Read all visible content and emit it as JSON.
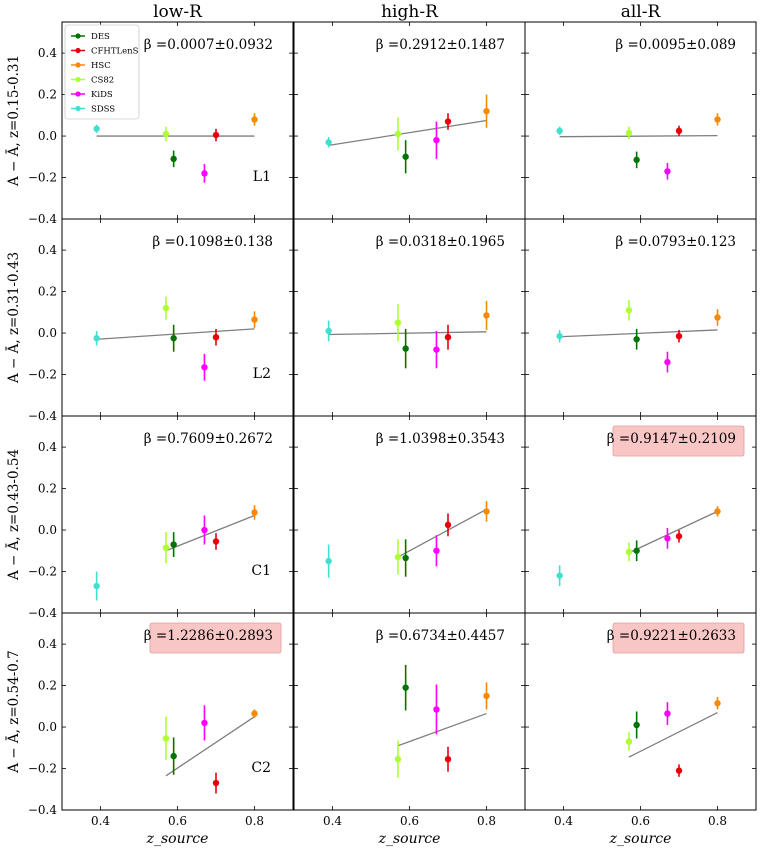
{
  "chart_data": {
    "type": "scatter",
    "layout": "4x3 grid of panels with error bars and linear fit lines",
    "columns": [
      "low-R",
      "high-R",
      "all-R"
    ],
    "rows": [
      {
        "label": "A − Ā, z=0.15-0.31",
        "tag": "L1"
      },
      {
        "label": "A − Ā, z=0.31-0.43",
        "tag": "L2"
      },
      {
        "label": "A − Ā, z=0.43-0.54",
        "tag": "C1"
      },
      {
        "label": "A − Ā, z=0.54-0.7",
        "tag": "C2"
      }
    ],
    "xlabel": "z_source",
    "xlim": [
      0.3,
      0.9
    ],
    "ylim": [
      -0.4,
      0.55
    ],
    "xticks": [
      0.4,
      0.6,
      0.8
    ],
    "xtick_labels": [
      "0.4",
      "0.6",
      "0.8"
    ],
    "yticks": [
      -0.4,
      -0.2,
      0.0,
      0.2,
      0.4
    ],
    "ytick_labels": [
      "−0.4",
      "−0.2",
      "0.0",
      "0.2",
      "0.4"
    ],
    "series": [
      {
        "name": "DES",
        "color": "#007400"
      },
      {
        "name": "CFHTLenS",
        "color": "#e8000b"
      },
      {
        "name": "HSC",
        "color": "#f58a0a"
      },
      {
        "name": "CS82",
        "color": "#adff2f"
      },
      {
        "name": "KiDS",
        "color": "#ff00ff"
      },
      {
        "name": "SDSS",
        "color": "#40e0d0"
      }
    ],
    "x_positions": {
      "SDSS": 0.39,
      "CS82": 0.57,
      "DES": 0.59,
      "KiDS": 0.67,
      "CFHTLenS": 0.7,
      "HSC": 0.8
    },
    "panels": [
      {
        "row": 0,
        "col": 0,
        "beta": "β =0.0007±0.0932",
        "highlight": false,
        "points": {
          "SDSS": [
            0.035,
            0.02
          ],
          "CS82": [
            0.01,
            0.035
          ],
          "DES": [
            -0.11,
            0.04
          ],
          "KiDS": [
            -0.18,
            0.045
          ],
          "CFHTLenS": [
            0.005,
            0.03
          ],
          "HSC": [
            0.08,
            0.03
          ]
        },
        "fit": [
          [
            0.39,
            0.0
          ],
          [
            0.8,
            0.0
          ]
        ]
      },
      {
        "row": 0,
        "col": 1,
        "beta": "β =0.2912±0.1487",
        "highlight": false,
        "points": {
          "SDSS": [
            -0.03,
            0.025
          ],
          "CS82": [
            0.01,
            0.08
          ],
          "DES": [
            -0.1,
            0.08
          ],
          "KiDS": [
            -0.02,
            0.09
          ],
          "CFHTLenS": [
            0.07,
            0.04
          ],
          "HSC": [
            0.12,
            0.08
          ]
        },
        "fit": [
          [
            0.39,
            -0.045
          ],
          [
            0.8,
            0.075
          ]
        ]
      },
      {
        "row": 0,
        "col": 2,
        "beta": "β =0.0095±0.089",
        "highlight": false,
        "points": {
          "SDSS": [
            0.025,
            0.02
          ],
          "CS82": [
            0.015,
            0.03
          ],
          "DES": [
            -0.115,
            0.04
          ],
          "KiDS": [
            -0.17,
            0.04
          ],
          "CFHTLenS": [
            0.025,
            0.025
          ],
          "HSC": [
            0.08,
            0.03
          ]
        },
        "fit": [
          [
            0.39,
            -0.003
          ],
          [
            0.8,
            0.002
          ]
        ]
      },
      {
        "row": 1,
        "col": 0,
        "beta": "β =0.1098±0.138",
        "highlight": false,
        "points": {
          "SDSS": [
            -0.025,
            0.035
          ],
          "CS82": [
            0.12,
            0.055
          ],
          "DES": [
            -0.025,
            0.065
          ],
          "KiDS": [
            -0.165,
            0.065
          ],
          "CFHTLenS": [
            -0.02,
            0.04
          ],
          "HSC": [
            0.065,
            0.04
          ]
        },
        "fit": [
          [
            0.39,
            -0.03
          ],
          [
            0.8,
            0.02
          ]
        ]
      },
      {
        "row": 1,
        "col": 1,
        "beta": "β =0.0318±0.1965",
        "highlight": false,
        "points": {
          "SDSS": [
            0.01,
            0.05
          ],
          "CS82": [
            0.05,
            0.09
          ],
          "DES": [
            -0.075,
            0.095
          ],
          "KiDS": [
            -0.08,
            0.09
          ],
          "CFHTLenS": [
            -0.02,
            0.06
          ],
          "HSC": [
            0.085,
            0.07
          ]
        },
        "fit": [
          [
            0.39,
            -0.007
          ],
          [
            0.8,
            0.006
          ]
        ]
      },
      {
        "row": 1,
        "col": 2,
        "beta": "β =0.0793±0.123",
        "highlight": false,
        "points": {
          "SDSS": [
            -0.015,
            0.03
          ],
          "CS82": [
            0.11,
            0.05
          ],
          "DES": [
            -0.03,
            0.05
          ],
          "KiDS": [
            -0.14,
            0.05
          ],
          "CFHTLenS": [
            -0.015,
            0.03
          ],
          "HSC": [
            0.075,
            0.04
          ]
        },
        "fit": [
          [
            0.39,
            -0.018
          ],
          [
            0.8,
            0.015
          ]
        ]
      },
      {
        "row": 2,
        "col": 0,
        "beta": "β =0.7609±0.2672",
        "highlight": false,
        "points": {
          "SDSS": [
            -0.27,
            0.07
          ],
          "CS82": [
            -0.085,
            0.075
          ],
          "DES": [
            -0.07,
            0.06
          ],
          "KiDS": [
            0.0,
            0.07
          ],
          "CFHTLenS": [
            -0.055,
            0.04
          ],
          "HSC": [
            0.085,
            0.035
          ]
        },
        "fit": [
          [
            0.57,
            -0.1
          ],
          [
            0.8,
            0.07
          ]
        ]
      },
      {
        "row": 2,
        "col": 1,
        "beta": "β =1.0398±0.3543",
        "highlight": false,
        "points": {
          "SDSS": [
            -0.15,
            0.08
          ],
          "CS82": [
            -0.13,
            0.085
          ],
          "DES": [
            -0.135,
            0.09
          ],
          "KiDS": [
            -0.1,
            0.075
          ],
          "CFHTLenS": [
            0.025,
            0.055
          ],
          "HSC": [
            0.09,
            0.05
          ]
        },
        "fit": [
          [
            0.57,
            -0.13
          ],
          [
            0.8,
            0.1
          ]
        ]
      },
      {
        "row": 2,
        "col": 2,
        "beta": "β =0.9147±0.2109",
        "highlight": true,
        "points": {
          "SDSS": [
            -0.22,
            0.05
          ],
          "CS82": [
            -0.105,
            0.045
          ],
          "DES": [
            -0.1,
            0.05
          ],
          "KiDS": [
            -0.04,
            0.05
          ],
          "CFHTLenS": [
            -0.03,
            0.03
          ],
          "HSC": [
            0.09,
            0.025
          ]
        },
        "fit": [
          [
            0.57,
            -0.11
          ],
          [
            0.8,
            0.09
          ]
        ]
      },
      {
        "row": 3,
        "col": 0,
        "beta": "β =1.2286±0.2893",
        "highlight": true,
        "points": {
          "CS82": [
            -0.055,
            0.105
          ],
          "DES": [
            -0.14,
            0.09
          ],
          "KiDS": [
            0.02,
            0.085
          ],
          "CFHTLenS": [
            -0.27,
            0.05
          ],
          "HSC": [
            0.065,
            0.02
          ]
        },
        "fit": [
          [
            0.57,
            -0.235
          ],
          [
            0.8,
            0.05
          ]
        ]
      },
      {
        "row": 3,
        "col": 1,
        "beta": "β =0.6734±0.4457",
        "highlight": false,
        "points": {
          "CS82": [
            -0.155,
            0.09
          ],
          "DES": [
            0.19,
            0.11
          ],
          "KiDS": [
            0.085,
            0.12
          ],
          "CFHTLenS": [
            -0.155,
            0.06
          ],
          "HSC": [
            0.15,
            0.065
          ]
        },
        "fit": [
          [
            0.57,
            -0.09
          ],
          [
            0.8,
            0.065
          ]
        ]
      },
      {
        "row": 3,
        "col": 2,
        "beta": "β =0.9221±0.2633",
        "highlight": true,
        "points": {
          "CS82": [
            -0.07,
            0.045
          ],
          "DES": [
            0.01,
            0.065
          ],
          "KiDS": [
            0.065,
            0.055
          ],
          "CFHTLenS": [
            -0.21,
            0.03
          ],
          "HSC": [
            0.115,
            0.03
          ]
        },
        "fit": [
          [
            0.57,
            -0.145
          ],
          [
            0.8,
            0.07
          ]
        ]
      }
    ]
  }
}
